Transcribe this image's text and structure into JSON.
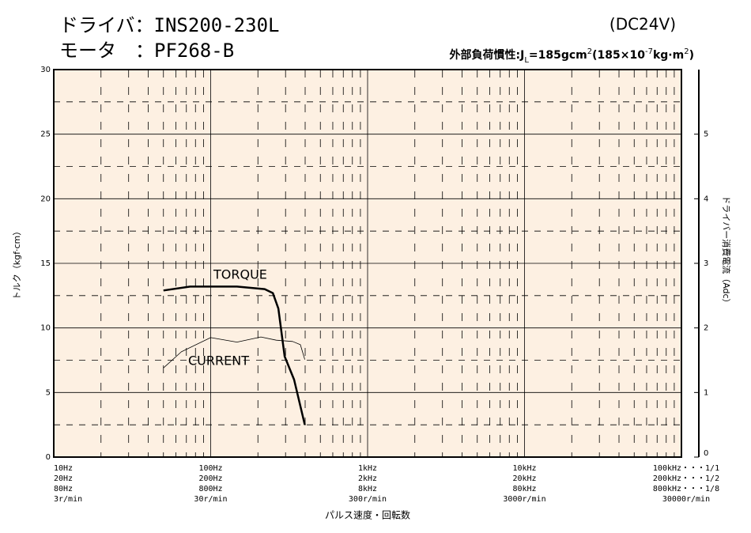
{
  "chart_data": {
    "type": "line",
    "header": {
      "driver": "ドライバ：INS200-230L",
      "motor": "モータ　：PF268-B",
      "supply": "(DC24V)",
      "inertia": [
        "外部負荷慣性:J",
        "L",
        "=185gcm",
        "2",
        "(185×10",
        "-7",
        "kg·m",
        "2",
        ")"
      ]
    },
    "xlabel": "パルス速度・回転数",
    "ylabel": "トルク（kgf·cm）",
    "y2label": "ドライバー消費電流（Adc）",
    "xscale": "log",
    "xlim": [
      10,
      100000
    ],
    "ylim": [
      0,
      30
    ],
    "y2lim": [
      0,
      6
    ],
    "xticks": [
      {
        "value": 10,
        "label": "10Hz",
        "sublabels": [
          "20Hz",
          "80Hz",
          "3r/min"
        ]
      },
      {
        "value": 100,
        "label": "100Hz",
        "sublabels": [
          "200Hz",
          "800Hz",
          "30r/min"
        ]
      },
      {
        "value": 1000,
        "label": "1kHz",
        "sublabels": [
          "2kHz",
          "8kHz",
          "300r/min"
        ]
      },
      {
        "value": 10000,
        "label": "10kHz",
        "sublabels": [
          "20kHz",
          "80kHz",
          "3000r/min"
        ]
      },
      {
        "value": 100000,
        "label": "100kHz・・・1/1",
        "sublabels": [
          "200kHz・・・1/2",
          "800kHz・・・1/8",
          "30000r/min"
        ]
      }
    ],
    "xminor": [
      20,
      30,
      40,
      50,
      60,
      70,
      80,
      90,
      200,
      300,
      400,
      500,
      600,
      700,
      800,
      900,
      2000,
      3000,
      4000,
      5000,
      6000,
      7000,
      8000,
      9000,
      20000,
      30000,
      40000,
      50000,
      60000,
      70000,
      80000,
      90000
    ],
    "yticks": [
      0,
      5,
      10,
      15,
      20,
      25,
      30
    ],
    "yminor": [
      2.5,
      7.5,
      12.5,
      17.5,
      22.5,
      27.5
    ],
    "y2ticks": [
      0,
      1,
      2,
      3,
      4,
      5
    ],
    "grid": true,
    "series": [
      {
        "name": "TORQUE",
        "color": "#000000",
        "width": 2.5,
        "x": [
          50,
          74,
          100,
          147,
          221,
          249,
          270,
          296,
          340,
          398
        ],
        "values": [
          12.9,
          13.2,
          13.2,
          13.2,
          13.0,
          12.7,
          11.5,
          7.8,
          6.0,
          2.5
        ]
      },
      {
        "name": "CURRENT",
        "color": "#000000",
        "width": 0.8,
        "axis": "y2",
        "x": [
          50,
          65,
          100,
          147,
          209,
          262,
          333,
          373,
          398
        ],
        "values": [
          1.38,
          1.63,
          1.85,
          1.78,
          1.86,
          1.81,
          1.79,
          1.74,
          1.51
        ]
      }
    ]
  }
}
